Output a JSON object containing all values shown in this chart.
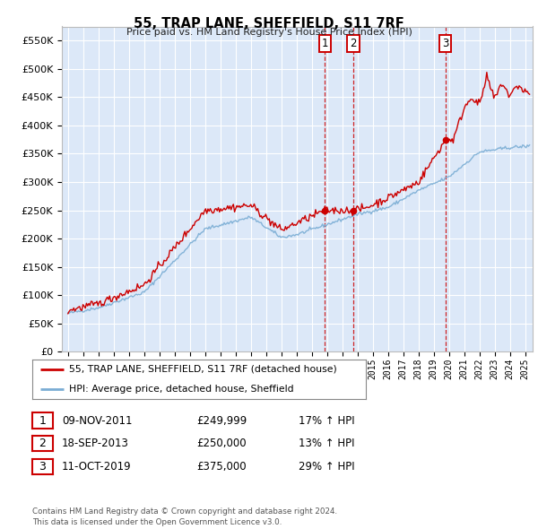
{
  "title": "55, TRAP LANE, SHEFFIELD, S11 7RF",
  "subtitle": "Price paid vs. HM Land Registry's House Price Index (HPI)",
  "ylim": [
    0,
    575000
  ],
  "yticks": [
    0,
    50000,
    100000,
    150000,
    200000,
    250000,
    300000,
    350000,
    400000,
    450000,
    500000,
    550000
  ],
  "background_color": "#ffffff",
  "plot_bg_color": "#dce8f8",
  "grid_color": "#ffffff",
  "sale_points": [
    {
      "date_num": 2011.86,
      "price": 249999,
      "label": "1"
    },
    {
      "date_num": 2013.72,
      "price": 250000,
      "label": "2"
    },
    {
      "date_num": 2019.78,
      "price": 375000,
      "label": "3"
    }
  ],
  "vline_dates": [
    2011.86,
    2013.72,
    2019.78
  ],
  "legend_entries": [
    "55, TRAP LANE, SHEFFIELD, S11 7RF (detached house)",
    "HPI: Average price, detached house, Sheffield"
  ],
  "table_rows": [
    [
      "1",
      "09-NOV-2011",
      "£249,999",
      "17% ↑ HPI"
    ],
    [
      "2",
      "18-SEP-2013",
      "£250,000",
      "13% ↑ HPI"
    ],
    [
      "3",
      "11-OCT-2019",
      "£375,000",
      "29% ↑ HPI"
    ]
  ],
  "footer": "Contains HM Land Registry data © Crown copyright and database right 2024.\nThis data is licensed under the Open Government Licence v3.0.",
  "red_color": "#cc0000",
  "blue_color": "#7aadd4",
  "marker_color": "#cc0000",
  "xlim_left": 1994.6,
  "xlim_right": 2025.5
}
